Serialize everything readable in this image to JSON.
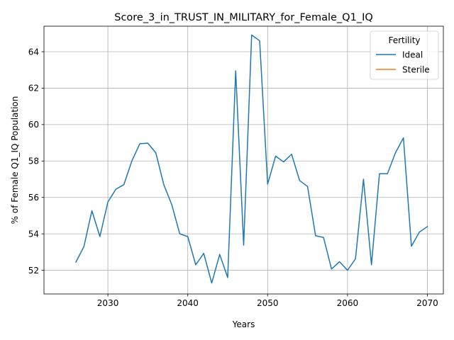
{
  "chart_data": {
    "type": "line",
    "title": "Score_3_in_TRUST_IN_MILITARY_for_Female_Q1_IQ",
    "xlabel": "Years",
    "ylabel": "% of Female Q1_IQ Population",
    "xlim": [
      2022,
      2072
    ],
    "ylim": [
      50.7,
      65.4
    ],
    "xticks": [
      2030,
      2040,
      2050,
      2060,
      2070
    ],
    "yticks": [
      52,
      54,
      56,
      58,
      60,
      62,
      64
    ],
    "grid": true,
    "legend": {
      "title": "Fertility",
      "placement": "top-right"
    },
    "series": [
      {
        "name": "Ideal",
        "color": "#1f77b4",
        "x": [
          2026,
          2027,
          2028,
          2029,
          2030,
          2031,
          2032,
          2033,
          2034,
          2035,
          2036,
          2037,
          2038,
          2039,
          2040,
          2041,
          2042,
          2043,
          2044,
          2045,
          2046,
          2047,
          2048,
          2049,
          2050,
          2051,
          2052,
          2053,
          2054,
          2055,
          2056,
          2057,
          2058,
          2059,
          2060,
          2061,
          2062,
          2063,
          2064,
          2065,
          2066,
          2067,
          2068,
          2069,
          2070
        ],
        "values": [
          52.45,
          53.3,
          55.27,
          53.85,
          55.75,
          56.45,
          56.7,
          58.0,
          58.95,
          58.98,
          58.45,
          56.7,
          55.6,
          54.0,
          53.85,
          52.3,
          52.93,
          51.3,
          52.87,
          51.6,
          62.95,
          53.38,
          64.92,
          64.6,
          56.73,
          58.27,
          57.95,
          58.37,
          56.93,
          56.6,
          53.9,
          53.8,
          52.07,
          52.47,
          52.0,
          52.63,
          57.0,
          52.3,
          57.3,
          57.3,
          58.45,
          59.27,
          53.32,
          54.1,
          54.4
        ]
      },
      {
        "name": "Sterile",
        "color": "#ff7f0e",
        "x": [],
        "values": []
      }
    ]
  }
}
